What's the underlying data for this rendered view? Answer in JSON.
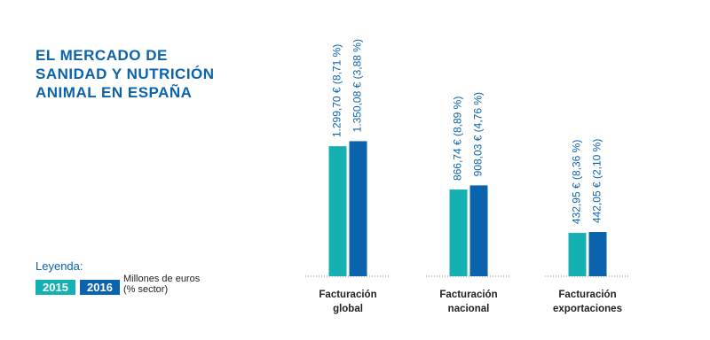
{
  "chart_data": {
    "type": "bar",
    "title": "EL MERCADO DE SANIDAD Y NUTRICIÓN ANIMAL EN ESPAÑA",
    "legend_title": "Leyenda:",
    "unit": "Millones de euros (% sector)",
    "categories": [
      "Facturación global",
      "Facturación nacional",
      "Facturación exportaciones"
    ],
    "series": [
      {
        "name": "2015",
        "color": "#14b0b2",
        "values": [
          1299.7,
          866.74,
          432.95
        ],
        "value_labels": [
          "1.299,70 € (8,71 %)",
          "866,74 € (8,89 %)",
          "432,95 € (8,36 %)"
        ]
      },
      {
        "name": "2016",
        "color": "#0b63ad",
        "values": [
          1350.08,
          908.03,
          442.05
        ],
        "value_labels": [
          "1.350,08 € (3,88 %)",
          "908,03 € (4,76 %)",
          "442,05 € (2,10 %)"
        ]
      }
    ],
    "ylim": [
      0,
      2000
    ]
  }
}
